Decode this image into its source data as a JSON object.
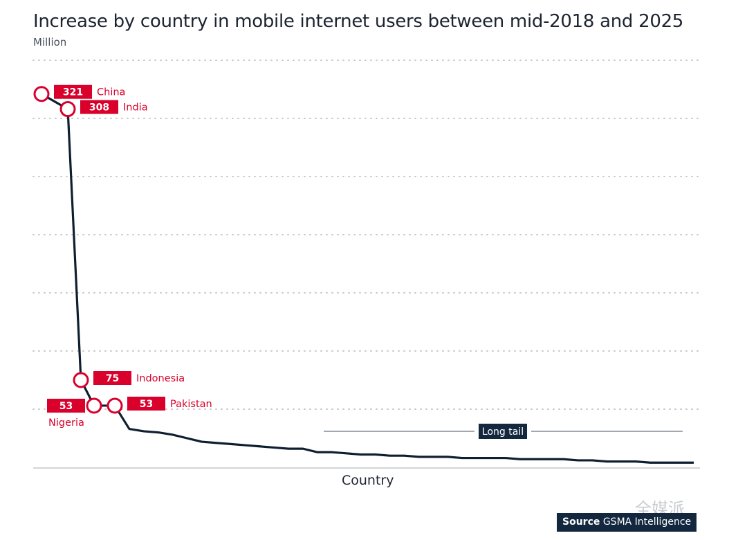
{
  "chart_data": {
    "type": "line",
    "title": "Increase by country in mobile internet users between mid-2018 and 2025",
    "subtitle": "Million",
    "xlabel": "Country",
    "ylabel": "Million",
    "ylim": [
      0,
      350
    ],
    "grid": true,
    "gridlines": [
      50,
      100,
      150,
      200,
      250,
      300,
      350
    ],
    "highlighted": [
      {
        "country": "China",
        "value": 321,
        "label_side": "right"
      },
      {
        "country": "India",
        "value": 308,
        "label_side": "right"
      },
      {
        "country": "Indonesia",
        "value": 75,
        "label_side": "right"
      },
      {
        "country": "Nigeria",
        "value": 53,
        "label_side": "left"
      },
      {
        "country": "Pakistan",
        "value": 53,
        "label_side": "right"
      }
    ],
    "tail_values": [
      53,
      33,
      31,
      30,
      28,
      25,
      22,
      21,
      20,
      19,
      18,
      17,
      16,
      16,
      13,
      13,
      12,
      11,
      11,
      10,
      10,
      9,
      9,
      9,
      8,
      8,
      8,
      8,
      7,
      7,
      7,
      7,
      6,
      6,
      5,
      5,
      5,
      4,
      4,
      4,
      4
    ],
    "annotation": "Long tail"
  },
  "source": {
    "bold": "Source",
    "text": "GSMA Intelligence"
  },
  "watermark": "全媒派",
  "colors": {
    "accent": "#d9002b",
    "line": "#0f1f30",
    "grid": "#c8c8c8",
    "source_bg": "#13283f"
  }
}
